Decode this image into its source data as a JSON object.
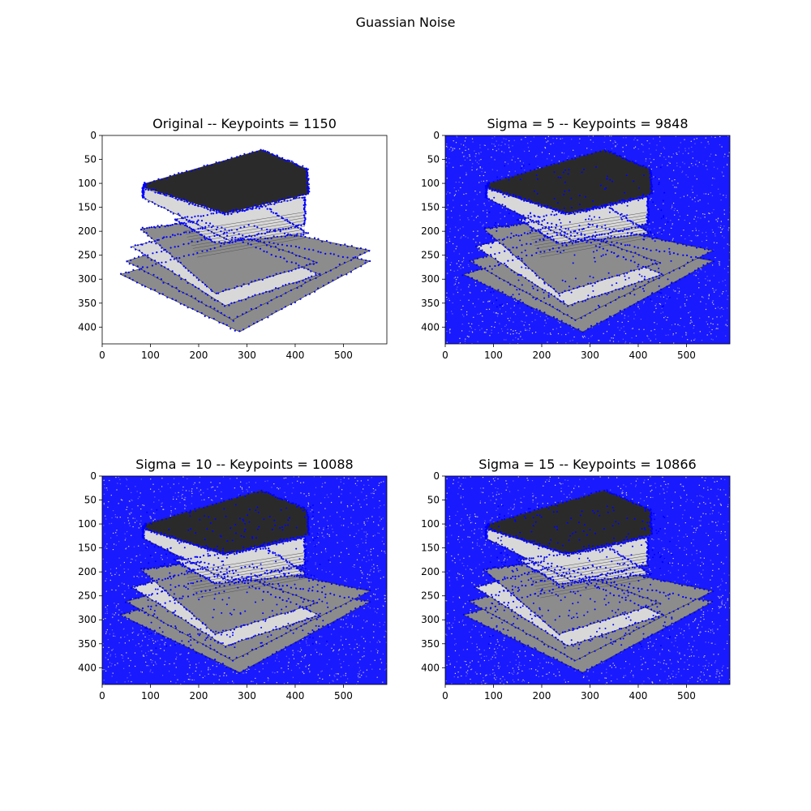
{
  "figure": {
    "suptitle": "Guassian Noise",
    "colors": {
      "keypoint": "#0000ff",
      "axis": "#000000",
      "book_dark": "#2a2a2a",
      "book_mid": "#8c8c8c",
      "book_light": "#d8d8d8",
      "noise_bg": "#1a1aff"
    },
    "panels": [
      {
        "title": "Original -- Keypoints = 1150",
        "noise": false,
        "keypoints": 1150,
        "xlim": [
          0,
          590
        ],
        "ylim": [
          435,
          0
        ],
        "xticks": [
          "0",
          "100",
          "200",
          "300",
          "400",
          "500"
        ],
        "yticks": [
          "0",
          "50",
          "100",
          "150",
          "200",
          "250",
          "300",
          "350",
          "400"
        ]
      },
      {
        "title": "Sigma = 5 -- Keypoints = 9848",
        "noise": true,
        "sigma": 5,
        "keypoints": 9848,
        "xlim": [
          0,
          590
        ],
        "ylim": [
          435,
          0
        ],
        "xticks": [
          "0",
          "100",
          "200",
          "300",
          "400",
          "500"
        ],
        "yticks": [
          "0",
          "50",
          "100",
          "150",
          "200",
          "250",
          "300",
          "350",
          "400"
        ]
      },
      {
        "title": "Sigma = 10 -- Keypoints = 10088",
        "noise": true,
        "sigma": 10,
        "keypoints": 10088,
        "xlim": [
          0,
          590
        ],
        "ylim": [
          435,
          0
        ],
        "xticks": [
          "0",
          "100",
          "200",
          "300",
          "400",
          "500"
        ],
        "yticks": [
          "0",
          "50",
          "100",
          "150",
          "200",
          "250",
          "300",
          "350",
          "400"
        ]
      },
      {
        "title": "Sigma = 15 -- Keypoints = 10866",
        "noise": true,
        "sigma": 15,
        "keypoints": 10866,
        "xlim": [
          0,
          590
        ],
        "ylim": [
          435,
          0
        ],
        "xticks": [
          "0",
          "100",
          "200",
          "300",
          "400",
          "500"
        ],
        "yticks": [
          "0",
          "50",
          "100",
          "150",
          "200",
          "250",
          "300",
          "350",
          "400"
        ]
      }
    ]
  }
}
